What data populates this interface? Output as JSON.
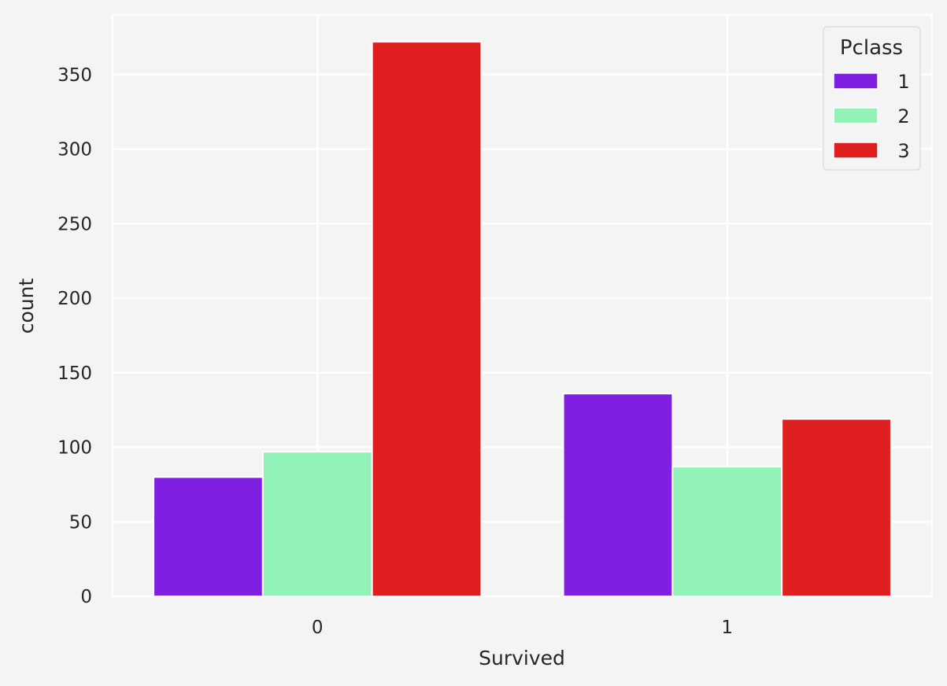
{
  "chart_data": {
    "type": "bar",
    "xlabel": "Survived",
    "ylabel": "count",
    "categories": [
      "0",
      "1"
    ],
    "ylim": [
      0,
      390
    ],
    "yticks": [
      0,
      50,
      100,
      150,
      200,
      250,
      300,
      350
    ],
    "grid": true,
    "legend": {
      "title": "Pclass",
      "position": "top-right"
    },
    "series": [
      {
        "name": "1",
        "color": "#7f1fe1",
        "values": [
          80,
          136
        ]
      },
      {
        "name": "2",
        "color": "#92f2b8",
        "values": [
          97,
          87
        ]
      },
      {
        "name": "3",
        "color": "#df1f1f",
        "values": [
          372,
          119
        ]
      }
    ],
    "colors": {
      "background": "#f4f4f4",
      "grid": "#ffffff",
      "text": "#262626"
    }
  }
}
